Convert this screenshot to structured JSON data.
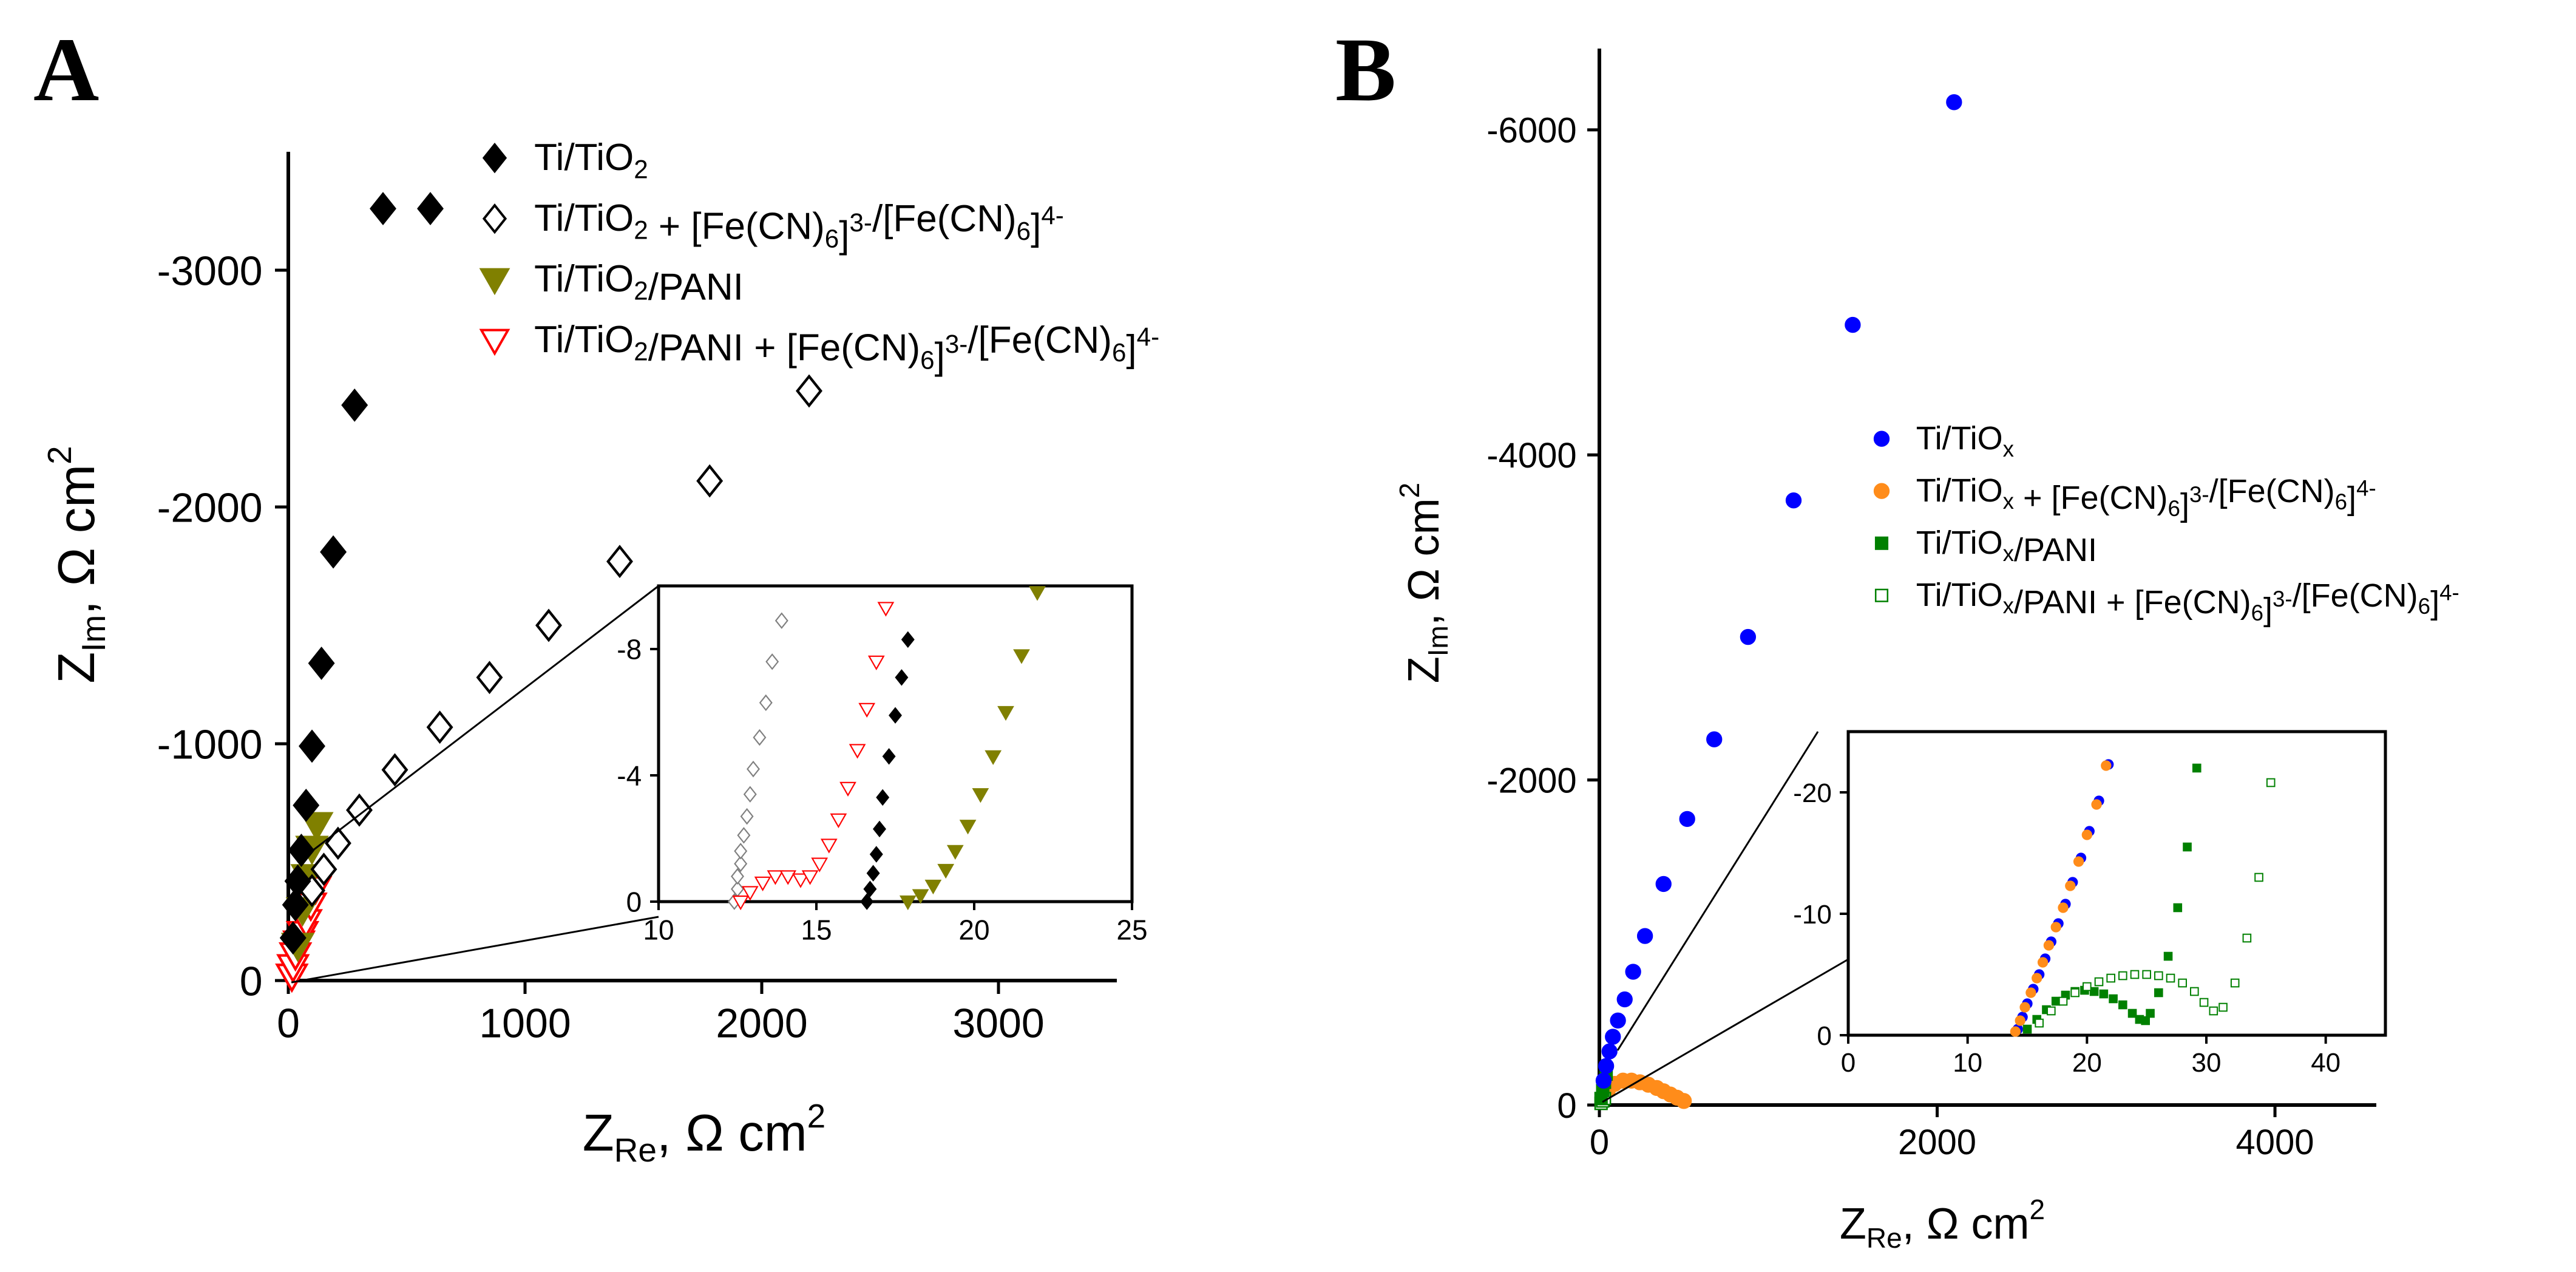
{
  "chart_data": [
    {
      "panel_label": "A",
      "type": "scatter",
      "xlabel": {
        "main": "Z",
        "sub": "Re",
        "unit": ", Ω cm",
        "sup": "2"
      },
      "ylabel": {
        "main": "Z",
        "sub": "Im",
        "unit": ", Ω cm",
        "sup": "2"
      },
      "xlim": [
        0,
        3500
      ],
      "ylim": [
        0,
        -3500
      ],
      "xticks": [
        0,
        1000,
        2000,
        3000
      ],
      "yticks": [
        0,
        -1000,
        -2000,
        -3000
      ],
      "series": [
        {
          "name": "Ti/TiO2",
          "label": [
            [
              "Ti/TiO",
              ""
            ],
            [
              "2",
              "sub"
            ]
          ],
          "marker": "diamond-filled",
          "color": "#000000",
          "x": [
            20,
            30,
            40,
            55,
            75,
            100,
            140,
            190,
            280,
            400,
            600
          ],
          "y": [
            -180,
            -320,
            -420,
            -550,
            -740,
            -990,
            -1340,
            -1810,
            -2430,
            -3260,
            -3260
          ]
        },
        {
          "name": "Ti/TiO2 + [Fe(CN)6]3-/[Fe(CN)6]4-",
          "label": [
            [
              "Ti/TiO",
              ""
            ],
            [
              "2",
              "sub"
            ],
            [
              " + [Fe(CN)",
              ""
            ],
            [
              "6",
              "sub"
            ],
            [
              "]",
              ""
            ],
            [
              "3-",
              "sup"
            ],
            [
              "/[Fe(CN)",
              ""
            ],
            [
              "6",
              "sub"
            ],
            [
              "]",
              ""
            ],
            [
              "4-",
              "sup"
            ]
          ],
          "marker": "diamond-open",
          "color": "#000000",
          "x": [
            100,
            150,
            210,
            300,
            450,
            640,
            850,
            1100,
            1400,
            1780,
            2200
          ],
          "y": [
            -380,
            -470,
            -580,
            -720,
            -890,
            -1070,
            -1280,
            -1500,
            -1770,
            -2110,
            -2490
          ]
        },
        {
          "name": "Ti/TiO2/PANI",
          "label": [
            [
              "Ti/TiO",
              ""
            ],
            [
              "2",
              "sub"
            ],
            [
              "/PANI",
              ""
            ]
          ],
          "marker": "triangle-down-filled",
          "color": "#808000",
          "x": [
            40,
            60,
            80,
            100,
            120
          ],
          "y": [
            -150,
            -300,
            -440,
            -560,
            -660
          ]
        },
        {
          "name": "Ti/TiO2/PANI + [Fe(CN)6]3-/[Fe(CN)6]4-",
          "label": [
            [
              "Ti/TiO",
              ""
            ],
            [
              "2",
              "sub"
            ],
            [
              "/PANI + [Fe(CN)",
              ""
            ],
            [
              "6",
              "sub"
            ],
            [
              "]",
              ""
            ],
            [
              "3-",
              "sup"
            ],
            [
              "/[Fe(CN)",
              ""
            ],
            [
              "6",
              "sub"
            ],
            [
              "]",
              ""
            ],
            [
              "4-",
              "sup"
            ]
          ],
          "marker": "triangle-down-open",
          "color": "#ff0000",
          "x": [
            15,
            20,
            30,
            45,
            60,
            75,
            95,
            115
          ],
          "y": [
            -20,
            -60,
            -110,
            -160,
            -200,
            -250,
            -320,
            -390
          ]
        }
      ],
      "inset": {
        "xlim": [
          10,
          25
        ],
        "ylim": [
          0,
          -10
        ],
        "xticks": [
          10,
          15,
          20,
          25
        ],
        "yticks": [
          0,
          -4,
          -8
        ],
        "series": [
          {
            "name": "Ti/TiO2 + [Fe(CN)6]3-/[Fe(CN)6]4-",
            "marker": "diamond-open",
            "color": "#808080",
            "x": [
              12.4,
              12.5,
              12.5,
              12.6,
              12.6,
              12.7,
              12.8,
              12.9,
              13.0,
              13.2,
              13.4,
              13.6,
              13.9
            ],
            "y": [
              0,
              -0.4,
              -0.8,
              -1.2,
              -1.6,
              -2.1,
              -2.7,
              -3.4,
              -4.2,
              -5.2,
              -6.3,
              -7.6,
              -8.9
            ]
          },
          {
            "name": "Ti/TiO2/PANI + [Fe(CN)6]3-/[Fe(CN)6]4-",
            "marker": "triangle-down-open",
            "color": "#ff0000",
            "x": [
              12.6,
              12.9,
              13.3,
              13.7,
              14.1,
              14.5,
              14.8,
              15.1,
              15.4,
              15.7,
              16.0,
              16.3,
              16.6,
              16.9,
              17.2
            ],
            "y": [
              0,
              -0.3,
              -0.6,
              -0.8,
              -0.8,
              -0.7,
              -0.8,
              -1.2,
              -1.8,
              -2.6,
              -3.6,
              -4.8,
              -6.1,
              -7.6,
              -9.3
            ]
          },
          {
            "name": "Ti/TiO2",
            "marker": "diamond-filled",
            "color": "#000000",
            "x": [
              16.6,
              16.7,
              16.8,
              16.9,
              17.0,
              17.1,
              17.3,
              17.5,
              17.7,
              17.9
            ],
            "y": [
              0,
              -0.4,
              -0.9,
              -1.5,
              -2.3,
              -3.3,
              -4.6,
              -5.9,
              -7.1,
              -8.3
            ]
          },
          {
            "name": "Ti/TiO2/PANI",
            "marker": "triangle-down-filled",
            "color": "#808000",
            "x": [
              17.9,
              18.3,
              18.7,
              19.1,
              19.4,
              19.8,
              20.2,
              20.6,
              21.0,
              21.5,
              22.0
            ],
            "y": [
              0,
              -0.2,
              -0.5,
              -1.0,
              -1.6,
              -2.4,
              -3.4,
              -4.6,
              -6.0,
              -7.8,
              -9.8
            ]
          }
        ]
      }
    },
    {
      "panel_label": "B",
      "type": "scatter",
      "xlabel": {
        "main": "Z",
        "sub": "Re",
        "unit": ", Ω cm",
        "sup": "2"
      },
      "ylabel": {
        "main": "Z",
        "sub": "Im",
        "unit": ", Ω cm",
        "sup": "2"
      },
      "xlim": [
        0,
        4600
      ],
      "ylim": [
        0,
        -6500
      ],
      "xticks": [
        0,
        2000,
        4000
      ],
      "yticks": [
        0,
        -2000,
        -4000,
        -6000
      ],
      "series": [
        {
          "name": "Ti/TiOx",
          "label": [
            [
              "Ti/TiO",
              ""
            ],
            [
              "x",
              "sub"
            ]
          ],
          "marker": "circle-filled",
          "color": "#0000ff",
          "x": [
            25,
            40,
            60,
            80,
            110,
            150,
            200,
            270,
            380,
            520,
            680,
            880,
            1150,
            1500,
            2100
          ],
          "y": [
            -150,
            -240,
            -330,
            -420,
            -520,
            -650,
            -820,
            -1040,
            -1360,
            -1760,
            -2250,
            -2880,
            -3720,
            -4800,
            -6170
          ]
        },
        {
          "name": "Ti/TiOx + [Fe(CN)6]3-/[Fe(CN)6]4-",
          "label": [
            [
              "Ti/TiO",
              ""
            ],
            [
              "x",
              "sub"
            ],
            [
              " + [Fe(CN)",
              ""
            ],
            [
              "6",
              "sub"
            ],
            [
              "]",
              ""
            ],
            [
              "3-",
              "sup"
            ],
            [
              "/[Fe(CN)",
              ""
            ],
            [
              "6",
              "sub"
            ],
            [
              "]",
              ""
            ],
            [
              "4-",
              "sup"
            ]
          ],
          "marker": "circle-filled",
          "color": "#ff8c1a",
          "x": [
            20,
            50,
            90,
            140,
            190,
            240,
            290,
            340,
            380,
            420,
            460,
            500
          ],
          "y": [
            -30,
            -90,
            -130,
            -150,
            -150,
            -140,
            -125,
            -105,
            -85,
            -65,
            -45,
            -25
          ]
        },
        {
          "name": "Ti/TiOx/PANI",
          "label": [
            [
              "Ti/TiO",
              ""
            ],
            [
              "x",
              "sub"
            ],
            [
              "/PANI",
              ""
            ]
          ],
          "marker": "square-filled",
          "color": "#008000",
          "x": [
            10,
            20,
            30,
            40
          ],
          "y": [
            -40,
            -90,
            -140,
            -190
          ]
        },
        {
          "name": "Ti/TiOx/PANI + [Fe(CN)6]3-/[Fe(CN)6]4-",
          "label": [
            [
              "Ti/TiO",
              ""
            ],
            [
              "x",
              "sub"
            ],
            [
              "/PANI + [Fe(CN)",
              ""
            ],
            [
              "6",
              "sub"
            ],
            [
              "]",
              ""
            ],
            [
              "3-",
              "sup"
            ],
            [
              "/[Fe(CN)",
              ""
            ],
            [
              "6",
              "sub"
            ],
            [
              "]",
              ""
            ],
            [
              "4-",
              "sup"
            ]
          ],
          "marker": "square-open",
          "color": "#008000",
          "x": [
            10,
            20,
            30
          ],
          "y": [
            -10,
            -25,
            -40
          ]
        }
      ],
      "inset": {
        "xlim": [
          0,
          45
        ],
        "ylim": [
          0,
          -25
        ],
        "xticks": [
          0,
          10,
          20,
          30,
          40
        ],
        "yticks": [
          0,
          -10,
          -20
        ],
        "series": [
          {
            "name": "Ti/TiOx",
            "marker": "circle-filled",
            "color": "#0000ff",
            "x": [
              14.2,
              14.6,
              15.0,
              15.5,
              16.0,
              16.5,
              17.0,
              17.6,
              18.2,
              18.8,
              19.5,
              20.2,
              21.0,
              21.8
            ],
            "y": [
              -0.5,
              -1.5,
              -2.6,
              -3.8,
              -5.0,
              -6.3,
              -7.7,
              -9.2,
              -10.8,
              -12.6,
              -14.6,
              -16.8,
              -19.3,
              -22.3
            ]
          },
          {
            "name": "Ti/TiOx + [Fe(CN)6]3-/[Fe(CN)6]4-",
            "marker": "circle-filled",
            "color": "#ff8c1a",
            "x": [
              14.0,
              14.4,
              14.8,
              15.3,
              15.8,
              16.3,
              16.8,
              17.4,
              18.0,
              18.6,
              19.3,
              20.0,
              20.8,
              21.6
            ],
            "y": [
              -0.3,
              -1.2,
              -2.3,
              -3.5,
              -4.7,
              -6.0,
              -7.4,
              -8.9,
              -10.5,
              -12.3,
              -14.3,
              -16.5,
              -19.0,
              -22.2
            ]
          },
          {
            "name": "Ti/TiOx/PANI",
            "marker": "square-filled",
            "color": "#008000",
            "x": [
              15.0,
              15.8,
              16.6,
              17.4,
              18.2,
              19.0,
              19.8,
              20.6,
              21.4,
              22.2,
              23.0,
              23.8,
              24.4,
              24.9,
              25.3,
              26.0,
              26.8,
              27.6,
              28.4,
              29.2
            ],
            "y": [
              -0.5,
              -1.3,
              -2.1,
              -2.8,
              -3.3,
              -3.6,
              -3.7,
              -3.6,
              -3.4,
              -3.0,
              -2.5,
              -1.8,
              -1.3,
              -1.2,
              -1.8,
              -3.5,
              -6.5,
              -10.5,
              -15.5,
              -22.0
            ]
          },
          {
            "name": "Ti/TiOx/PANI + [Fe(CN)6]3-/[Fe(CN)6]4-",
            "marker": "square-open",
            "color": "#008000",
            "x": [
              16.0,
              17.0,
              18.0,
              19.0,
              20.0,
              21.0,
              22.0,
              23.0,
              24.0,
              25.0,
              26.0,
              27.0,
              28.0,
              29.0,
              29.8,
              30.6,
              31.4,
              32.4,
              33.4,
              34.4,
              35.4
            ],
            "y": [
              -1.0,
              -2.0,
              -2.8,
              -3.5,
              -4.0,
              -4.4,
              -4.7,
              -4.9,
              -5.0,
              -5.0,
              -4.9,
              -4.7,
              -4.3,
              -3.6,
              -2.7,
              -2.0,
              -2.3,
              -4.3,
              -8.0,
              -13.0,
              -20.8
            ]
          }
        ]
      }
    }
  ]
}
